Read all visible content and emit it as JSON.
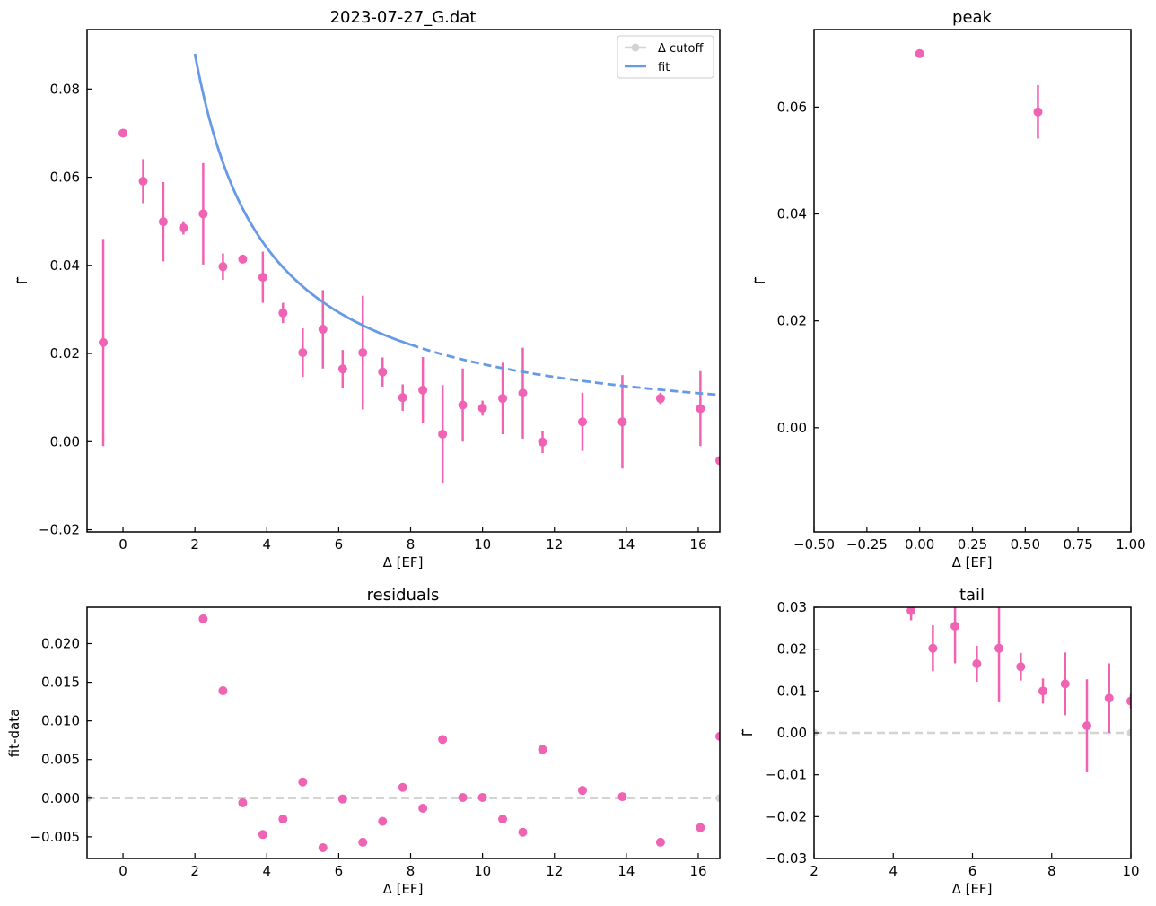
{
  "colors": {
    "data": "#f062b4",
    "fit": "#6699e6",
    "cutoff": "#d3d3d3",
    "legend_border": "#cccccc"
  },
  "chart_data": [
    {
      "id": "main",
      "type": "scatter",
      "title": "2023-07-27_G.dat",
      "xlabel": "Δ [EF]",
      "ylabel": "Γ̃",
      "xlim": [
        -1,
        16.6
      ],
      "ylim": [
        -0.0205,
        0.0935
      ],
      "xticks": [
        0,
        2,
        4,
        6,
        8,
        10,
        12,
        14,
        16
      ],
      "xtick_labels": [
        "0",
        "2",
        "4",
        "6",
        "8",
        "10",
        "12",
        "14",
        "16"
      ],
      "yticks": [
        -0.02,
        0.0,
        0.02,
        0.04,
        0.06,
        0.08
      ],
      "ytick_labels": [
        "−0.02",
        "0.00",
        "0.02",
        "0.04",
        "0.06",
        "0.08"
      ],
      "legend": {
        "position": "top-right",
        "entries": [
          "Δ cutoff",
          "fit"
        ]
      },
      "series": [
        {
          "name": "data",
          "kind": "errorbar",
          "x": [
            -0.55,
            0.0,
            0.56,
            1.12,
            1.68,
            2.23,
            2.78,
            3.33,
            3.89,
            4.45,
            5.0,
            5.56,
            6.11,
            6.67,
            7.22,
            7.78,
            8.34,
            8.89,
            9.45,
            10.0,
            10.56,
            11.12,
            11.67,
            12.78,
            13.89,
            14.95,
            16.06,
            16.6
          ],
          "y": [
            0.0225,
            0.07,
            0.0591,
            0.0499,
            0.0485,
            0.0517,
            0.0397,
            0.0414,
            0.0373,
            0.0292,
            0.0202,
            0.0255,
            0.0165,
            0.0202,
            0.0158,
            0.01,
            0.0117,
            0.0017,
            0.0083,
            0.0076,
            0.0098,
            0.011,
            -0.0001,
            0.0045,
            0.0045,
            0.0098,
            0.0075,
            -0.0043
          ],
          "yerr": [
            0.0235,
            0.0,
            0.005,
            0.009,
            0.0015,
            0.0115,
            0.003,
            0.0,
            0.0058,
            0.0023,
            0.0055,
            0.0089,
            0.0043,
            0.0129,
            0.0033,
            0.003,
            0.0075,
            0.0111,
            0.0083,
            0.0017,
            0.0081,
            0.0103,
            0.0025,
            0.0066,
            0.0106,
            0.0013,
            0.0085,
            0.0
          ]
        },
        {
          "name": "fit",
          "kind": "curve",
          "formula": "y = 0.176 / x",
          "solid_range": [
            2.0,
            8.0
          ],
          "dashed_range": [
            8.0,
            16.6
          ]
        }
      ]
    },
    {
      "id": "peak",
      "type": "scatter",
      "title": "peak",
      "xlabel": "Δ [EF]",
      "ylabel": "Γ̃",
      "xlim": [
        -0.5,
        1.0
      ],
      "ylim": [
        -0.0195,
        0.0745
      ],
      "xticks": [
        -0.5,
        -0.25,
        0.0,
        0.25,
        0.5,
        0.75,
        1.0
      ],
      "xtick_labels": [
        "−0.50",
        "−0.25",
        "0.00",
        "0.25",
        "0.50",
        "0.75",
        "1.00"
      ],
      "yticks": [
        0.0,
        0.02,
        0.04,
        0.06
      ],
      "ytick_labels": [
        "0.00",
        "0.02",
        "0.04",
        "0.06"
      ],
      "series": [
        {
          "name": "data",
          "kind": "errorbar",
          "x": [
            0.0,
            0.56
          ],
          "y": [
            0.07,
            0.0591
          ],
          "yerr": [
            0.0,
            0.005
          ]
        }
      ]
    },
    {
      "id": "residuals",
      "type": "scatter",
      "title": "residuals",
      "xlabel": "Δ [EF]",
      "ylabel": "fit-data",
      "xlim": [
        -1,
        16.6
      ],
      "ylim": [
        -0.0078,
        0.0247
      ],
      "xticks": [
        0,
        2,
        4,
        6,
        8,
        10,
        12,
        14,
        16
      ],
      "xtick_labels": [
        "0",
        "2",
        "4",
        "6",
        "8",
        "10",
        "12",
        "14",
        "16"
      ],
      "yticks": [
        -0.005,
        0.0,
        0.005,
        0.01,
        0.015,
        0.02
      ],
      "ytick_labels": [
        "−0.005",
        "0.000",
        "0.005",
        "0.010",
        "0.015",
        "0.020"
      ],
      "hline": 0.0,
      "series": [
        {
          "name": "residuals",
          "kind": "points",
          "x": [
            2.23,
            2.78,
            3.33,
            3.89,
            4.45,
            5.0,
            5.56,
            6.11,
            6.67,
            7.22,
            7.78,
            8.34,
            8.89,
            9.45,
            10.0,
            10.56,
            11.12,
            11.67,
            12.78,
            13.89,
            14.95,
            16.06,
            16.6
          ],
          "y": [
            0.0232,
            0.0139,
            -0.0006,
            -0.0047,
            -0.0027,
            0.0021,
            -0.0064,
            -0.0001,
            -0.0057,
            -0.003,
            0.0014,
            -0.0013,
            0.0076,
            0.0001,
            0.0001,
            -0.0027,
            -0.0044,
            0.0063,
            0.001,
            0.0002,
            -0.0057,
            -0.0038,
            0.008
          ]
        }
      ]
    },
    {
      "id": "tail",
      "type": "scatter",
      "title": "tail",
      "xlabel": "Δ [EF]",
      "ylabel": "Γ̃",
      "xlim": [
        2,
        10
      ],
      "ylim": [
        -0.03,
        0.03
      ],
      "xticks": [
        2,
        4,
        6,
        8,
        10
      ],
      "xtick_labels": [
        "2",
        "4",
        "6",
        "8",
        "10"
      ],
      "yticks": [
        -0.03,
        -0.02,
        -0.01,
        0.0,
        0.01,
        0.02,
        0.03
      ],
      "ytick_labels": [
        "−0.03",
        "−0.02",
        "−0.01",
        "0.00",
        "0.01",
        "0.02",
        "0.03"
      ],
      "hline": 0.0,
      "series": [
        {
          "name": "data",
          "kind": "errorbar",
          "x": [
            4.45,
            5.0,
            5.56,
            6.11,
            6.67,
            7.22,
            7.78,
            8.34,
            8.89,
            9.45,
            10.0
          ],
          "y": [
            0.0292,
            0.0202,
            0.0255,
            0.0165,
            0.0202,
            0.0158,
            0.01,
            0.0117,
            0.0017,
            0.0083,
            0.0076
          ],
          "yerr": [
            0.0023,
            0.0055,
            0.0089,
            0.0043,
            0.0129,
            0.0033,
            0.003,
            0.0075,
            0.0111,
            0.0083,
            0.0017
          ]
        }
      ]
    }
  ]
}
